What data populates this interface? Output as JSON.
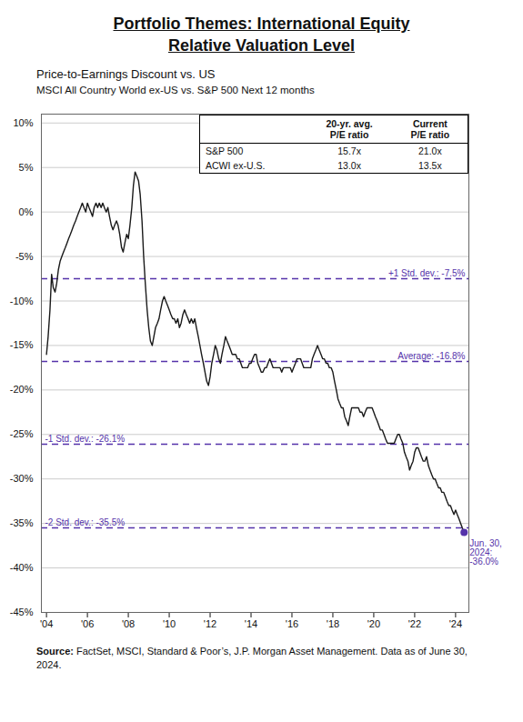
{
  "chart_data": {
    "type": "line",
    "title": [
      "Portfolio Themes: International Equity",
      "Relative Valuation Level"
    ],
    "subtitle": [
      "Price-to-Earnings Discount vs. US",
      "MSCI All Country World ex-US vs. S&P 500 Next 12 months"
    ],
    "x": [
      2004.0,
      2004.08,
      2004.17,
      2004.25,
      2004.33,
      2004.42,
      2004.5,
      2004.58,
      2004.67,
      2004.75,
      2004.83,
      2004.92,
      2005.0,
      2005.08,
      2005.17,
      2005.25,
      2005.33,
      2005.42,
      2005.5,
      2005.58,
      2005.67,
      2005.75,
      2005.83,
      2005.92,
      2006.0,
      2006.08,
      2006.17,
      2006.25,
      2006.33,
      2006.42,
      2006.5,
      2006.58,
      2006.67,
      2006.75,
      2006.83,
      2006.92,
      2007.0,
      2007.08,
      2007.17,
      2007.25,
      2007.33,
      2007.42,
      2007.5,
      2007.58,
      2007.67,
      2007.75,
      2007.83,
      2007.92,
      2008.0,
      2008.08,
      2008.17,
      2008.25,
      2008.33,
      2008.42,
      2008.5,
      2008.58,
      2008.67,
      2008.75,
      2008.83,
      2008.92,
      2009.0,
      2009.08,
      2009.17,
      2009.25,
      2009.33,
      2009.42,
      2009.5,
      2009.58,
      2009.67,
      2009.75,
      2009.83,
      2009.92,
      2010.0,
      2010.08,
      2010.17,
      2010.25,
      2010.33,
      2010.42,
      2010.5,
      2010.58,
      2010.67,
      2010.75,
      2010.83,
      2010.92,
      2011.0,
      2011.08,
      2011.17,
      2011.25,
      2011.33,
      2011.42,
      2011.5,
      2011.58,
      2011.67,
      2011.75,
      2011.83,
      2011.92,
      2012.0,
      2012.08,
      2012.17,
      2012.25,
      2012.33,
      2012.42,
      2012.5,
      2012.58,
      2012.67,
      2012.75,
      2012.83,
      2012.92,
      2013.0,
      2013.08,
      2013.17,
      2013.25,
      2013.33,
      2013.42,
      2013.5,
      2013.58,
      2013.67,
      2013.75,
      2013.83,
      2013.92,
      2014.0,
      2014.08,
      2014.17,
      2014.25,
      2014.33,
      2014.42,
      2014.5,
      2014.58,
      2014.67,
      2014.75,
      2014.83,
      2014.92,
      2015.0,
      2015.08,
      2015.17,
      2015.25,
      2015.33,
      2015.42,
      2015.5,
      2015.58,
      2015.67,
      2015.75,
      2015.83,
      2015.92,
      2016.0,
      2016.08,
      2016.17,
      2016.25,
      2016.33,
      2016.42,
      2016.5,
      2016.58,
      2016.67,
      2016.75,
      2016.83,
      2016.92,
      2017.0,
      2017.08,
      2017.17,
      2017.25,
      2017.33,
      2017.42,
      2017.5,
      2017.58,
      2017.67,
      2017.75,
      2017.83,
      2017.92,
      2018.0,
      2018.08,
      2018.17,
      2018.25,
      2018.33,
      2018.42,
      2018.5,
      2018.58,
      2018.67,
      2018.75,
      2018.83,
      2018.92,
      2019.0,
      2019.08,
      2019.17,
      2019.25,
      2019.33,
      2019.42,
      2019.5,
      2019.58,
      2019.67,
      2019.75,
      2019.83,
      2019.92,
      2020.0,
      2020.08,
      2020.17,
      2020.25,
      2020.33,
      2020.42,
      2020.5,
      2020.58,
      2020.67,
      2020.75,
      2020.83,
      2020.92,
      2021.0,
      2021.08,
      2021.17,
      2021.25,
      2021.33,
      2021.42,
      2021.5,
      2021.58,
      2021.67,
      2021.75,
      2021.83,
      2021.92,
      2022.0,
      2022.08,
      2022.17,
      2022.25,
      2022.33,
      2022.42,
      2022.5,
      2022.58,
      2022.67,
      2022.75,
      2022.83,
      2022.92,
      2023.0,
      2023.08,
      2023.17,
      2023.25,
      2023.33,
      2023.42,
      2023.5,
      2023.58,
      2023.67,
      2023.75,
      2023.83,
      2023.92,
      2024.0,
      2024.08,
      2024.17,
      2024.25,
      2024.33,
      2024.417
    ],
    "values": [
      -16.0,
      -14.0,
      -11.0,
      -7.0,
      -8.5,
      -9.0,
      -8.0,
      -6.5,
      -5.5,
      -5.0,
      -4.5,
      -4.0,
      -3.5,
      -3.0,
      -2.5,
      -2.0,
      -1.5,
      -1.0,
      -0.5,
      0.0,
      0.5,
      1.0,
      0.5,
      0.0,
      1.0,
      0.5,
      0.0,
      -0.5,
      0.5,
      1.0,
      0.5,
      1.0,
      0.5,
      1.0,
      0.5,
      0.0,
      0.5,
      -0.5,
      -1.5,
      -2.0,
      -1.5,
      -1.0,
      -1.5,
      -2.5,
      -4.0,
      -4.5,
      -3.5,
      -2.5,
      -3.0,
      -1.5,
      0.5,
      3.0,
      4.5,
      4.0,
      3.5,
      2.0,
      -1.0,
      -5.0,
      -8.0,
      -11.0,
      -13.0,
      -14.5,
      -15.0,
      -14.0,
      -13.0,
      -12.5,
      -12.0,
      -11.0,
      -10.0,
      -9.5,
      -10.0,
      -10.5,
      -11.0,
      -11.5,
      -12.0,
      -12.0,
      -12.5,
      -12.0,
      -13.0,
      -12.5,
      -11.5,
      -11.0,
      -11.5,
      -12.0,
      -12.5,
      -12.0,
      -12.5,
      -12.0,
      -13.0,
      -14.0,
      -15.0,
      -16.0,
      -17.0,
      -18.0,
      -19.0,
      -19.5,
      -18.5,
      -17.0,
      -16.0,
      -15.0,
      -15.5,
      -16.5,
      -17.0,
      -16.0,
      -15.0,
      -14.0,
      -14.5,
      -15.0,
      -15.5,
      -16.0,
      -16.0,
      -16.0,
      -16.5,
      -16.5,
      -17.0,
      -17.5,
      -17.5,
      -17.5,
      -17.5,
      -17.0,
      -17.0,
      -16.5,
      -16.0,
      -16.0,
      -17.0,
      -17.5,
      -18.0,
      -18.0,
      -17.5,
      -17.5,
      -17.0,
      -16.5,
      -17.0,
      -17.5,
      -17.5,
      -17.5,
      -17.5,
      -17.5,
      -18.0,
      -17.5,
      -17.5,
      -17.5,
      -17.5,
      -17.5,
      -18.0,
      -17.5,
      -17.0,
      -16.5,
      -16.5,
      -16.5,
      -17.0,
      -17.5,
      -17.5,
      -17.5,
      -17.5,
      -17.5,
      -16.5,
      -16.0,
      -15.5,
      -15.0,
      -15.5,
      -16.0,
      -16.5,
      -16.5,
      -17.0,
      -17.0,
      -17.5,
      -17.5,
      -18.0,
      -19.0,
      -20.0,
      -21.0,
      -21.5,
      -22.0,
      -22.0,
      -23.0,
      -23.5,
      -24.0,
      -23.0,
      -22.0,
      -22.0,
      -22.0,
      -22.0,
      -22.0,
      -22.5,
      -22.5,
      -23.0,
      -22.5,
      -22.0,
      -22.0,
      -22.0,
      -22.0,
      -22.5,
      -23.0,
      -23.5,
      -24.0,
      -24.5,
      -24.5,
      -25.0,
      -25.5,
      -26.0,
      -26.0,
      -26.0,
      -26.0,
      -26.0,
      -25.5,
      -25.0,
      -25.0,
      -25.5,
      -26.0,
      -27.0,
      -27.5,
      -28.0,
      -29.0,
      -28.5,
      -28.0,
      -27.0,
      -26.5,
      -26.5,
      -27.0,
      -27.5,
      -28.0,
      -28.0,
      -27.5,
      -28.5,
      -29.0,
      -29.5,
      -30.0,
      -30.0,
      -30.5,
      -31.0,
      -31.0,
      -31.5,
      -31.5,
      -32.0,
      -32.5,
      -33.0,
      -33.0,
      -33.5,
      -34.0,
      -33.5,
      -34.0,
      -34.5,
      -35.0,
      -35.5,
      -36.0
    ],
    "color": "#1a1a1a",
    "xlim": [
      2003.75,
      2024.65
    ],
    "xticks": [
      {
        "value": 2004,
        "label": "'04"
      },
      {
        "value": 2006,
        "label": "'06"
      },
      {
        "value": 2008,
        "label": "'08"
      },
      {
        "value": 2010,
        "label": "'10"
      },
      {
        "value": 2012,
        "label": "'12"
      },
      {
        "value": 2014,
        "label": "'14"
      },
      {
        "value": 2016,
        "label": "'16"
      },
      {
        "value": 2018,
        "label": "'18"
      },
      {
        "value": 2020,
        "label": "'20"
      },
      {
        "value": 2022,
        "label": "'22"
      },
      {
        "value": 2024,
        "label": "'24"
      }
    ],
    "ylim": [
      -45,
      11
    ],
    "yticks": [
      {
        "value": 10,
        "label": "10%"
      },
      {
        "value": 5,
        "label": "5%"
      },
      {
        "value": 0,
        "label": "0%"
      },
      {
        "value": -5,
        "label": "-5%"
      },
      {
        "value": -10,
        "label": "-10%"
      },
      {
        "value": -15,
        "label": "-15%"
      },
      {
        "value": -20,
        "label": "-20%"
      },
      {
        "value": -25,
        "label": "-25%"
      },
      {
        "value": -30,
        "label": "-30%"
      },
      {
        "value": -35,
        "label": "-35%"
      },
      {
        "value": -40,
        "label": "-40%"
      },
      {
        "value": -45,
        "label": "-45%"
      }
    ],
    "grid": true,
    "reference_lines": [
      {
        "value": -7.5,
        "label": "+1 Std. dev.: -7.5%",
        "color": "#5533aa",
        "line_style": "dashed"
      },
      {
        "value": -16.8,
        "label": "Average: -16.8%",
        "color": "#5533aa",
        "line_style": "dashed"
      },
      {
        "value": -26.1,
        "label": "-1 Std. dev.: -26.1%",
        "color": "#5533aa",
        "line_style": "dashed"
      },
      {
        "value": -35.5,
        "label": "-2 Std. dev.: -35.5%",
        "color": "#5533aa",
        "line_style": "dashed"
      }
    ],
    "annotations": [
      {
        "text": "Jun. 30,\n2024:\n-36.0%",
        "x": 2024.417,
        "y": -36.0,
        "color": "#5533aa",
        "marker": "dot"
      }
    ],
    "table": {
      "columns": [
        "20-yr. avg.\nP/E ratio",
        "Current\nP/E ratio"
      ],
      "rows": [
        {
          "name": "S&P 500",
          "cells": [
            "15.7x",
            "21.0x"
          ]
        },
        {
          "name": "ACWI ex-U.S.",
          "cells": [
            "13.0x",
            "13.5x"
          ]
        }
      ]
    },
    "source": {
      "label": "Source:",
      "text": "FactSet, MSCI, Standard & Poor’s, J.P. Morgan Asset Management. Data as of June 30, 2024."
    }
  }
}
